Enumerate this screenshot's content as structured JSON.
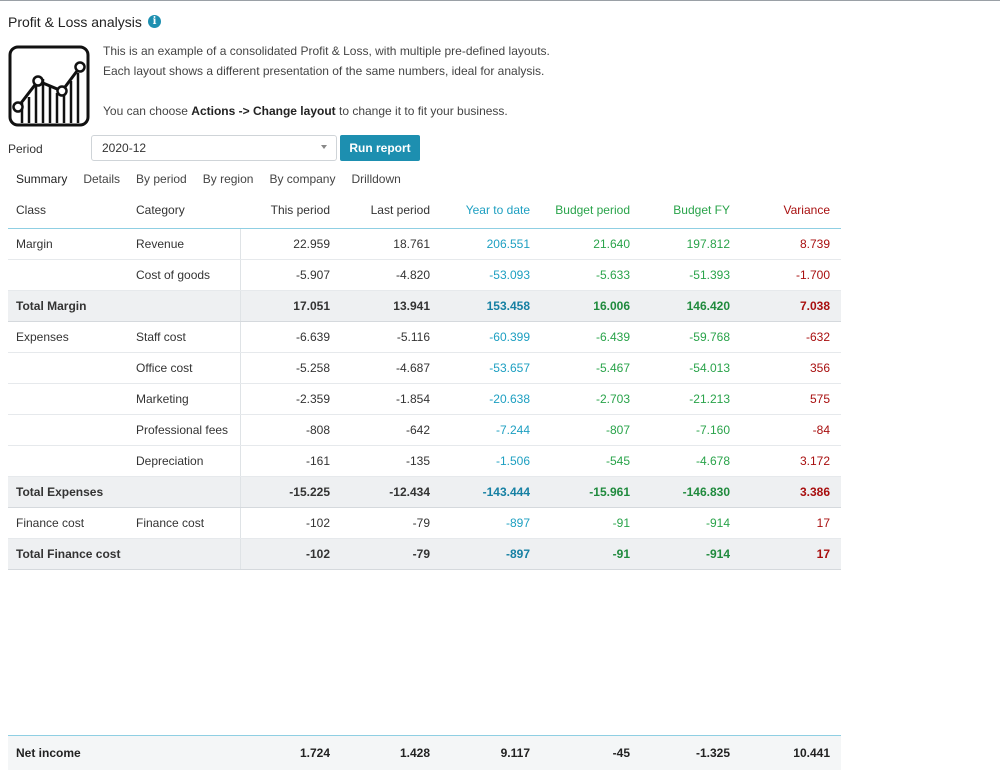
{
  "page": {
    "title": "Profit & Loss analysis",
    "info_icon": "i",
    "description_line1": "This is an example of a consolidated Profit & Loss, with multiple pre-defined layouts.",
    "description_line2": "Each layout shows a different presentation of the same numbers, ideal for analysis.",
    "description_line3_prefix": "You can choose ",
    "description_line3_bold": "Actions -> Change layout",
    "description_line3_suffix": " to change it to fit your business."
  },
  "controls": {
    "period_label": "Period",
    "period_value": "2020-12",
    "run_button": "Run report"
  },
  "tabs": [
    "Summary",
    "Details",
    "By period",
    "By region",
    "By company",
    "Drilldown"
  ],
  "table": {
    "columns": {
      "class": "Class",
      "category": "Category",
      "this_period": "This period",
      "last_period": "Last period",
      "ytd": "Year to date",
      "budget_period": "Budget period",
      "budget_fy": "Budget FY",
      "variance": "Variance"
    },
    "rows": [
      {
        "class": "Margin",
        "category": "Revenue",
        "tp": "22.959",
        "lp": "18.761",
        "ytd": "206.551",
        "bp": "21.640",
        "bfy": "197.812",
        "var": "8.739"
      },
      {
        "class": "",
        "category": "Cost of goods",
        "tp": "-5.907",
        "lp": "-4.820",
        "ytd": "-53.093",
        "bp": "-5.633",
        "bfy": "-51.393",
        "var": "-1.700"
      },
      {
        "class": "Total Margin",
        "category": "",
        "tp": "17.051",
        "lp": "13.941",
        "ytd": "153.458",
        "bp": "16.006",
        "bfy": "146.420",
        "var": "7.038"
      },
      {
        "class": "Expenses",
        "category": "Staff cost",
        "tp": "-6.639",
        "lp": "-5.116",
        "ytd": "-60.399",
        "bp": "-6.439",
        "bfy": "-59.768",
        "var": "-632"
      },
      {
        "class": "",
        "category": "Office cost",
        "tp": "-5.258",
        "lp": "-4.687",
        "ytd": "-53.657",
        "bp": "-5.467",
        "bfy": "-54.013",
        "var": "356"
      },
      {
        "class": "",
        "category": "Marketing",
        "tp": "-2.359",
        "lp": "-1.854",
        "ytd": "-20.638",
        "bp": "-2.703",
        "bfy": "-21.213",
        "var": "575"
      },
      {
        "class": "",
        "category": "Professional fees",
        "tp": "-808",
        "lp": "-642",
        "ytd": "-7.244",
        "bp": "-807",
        "bfy": "-7.160",
        "var": "-84"
      },
      {
        "class": "",
        "category": "Depreciation",
        "tp": "-161",
        "lp": "-135",
        "ytd": "-1.506",
        "bp": "-545",
        "bfy": "-4.678",
        "var": "3.172"
      },
      {
        "class": "Total Expenses",
        "category": "",
        "tp": "-15.225",
        "lp": "-12.434",
        "ytd": "-143.444",
        "bp": "-15.961",
        "bfy": "-146.830",
        "var": "3.386"
      },
      {
        "class": "Finance cost",
        "category": "Finance cost",
        "tp": "-102",
        "lp": "-79",
        "ytd": "-897",
        "bp": "-91",
        "bfy": "-914",
        "var": "17"
      },
      {
        "class": "Total Finance cost",
        "category": "",
        "tp": "-102",
        "lp": "-79",
        "ytd": "-897",
        "bp": "-91",
        "bfy": "-914",
        "var": "17"
      }
    ],
    "net_income": {
      "label": "Net income",
      "tp": "1.724",
      "lp": "1.428",
      "ytd": "9.117",
      "bp": "-45",
      "bfy": "-1.325",
      "var": "10.441"
    }
  },
  "colors": {
    "accent": "#1d8fb0",
    "ytd": "#1d9fc1",
    "budget": "#29a34a",
    "variance": "#a80f0f"
  }
}
